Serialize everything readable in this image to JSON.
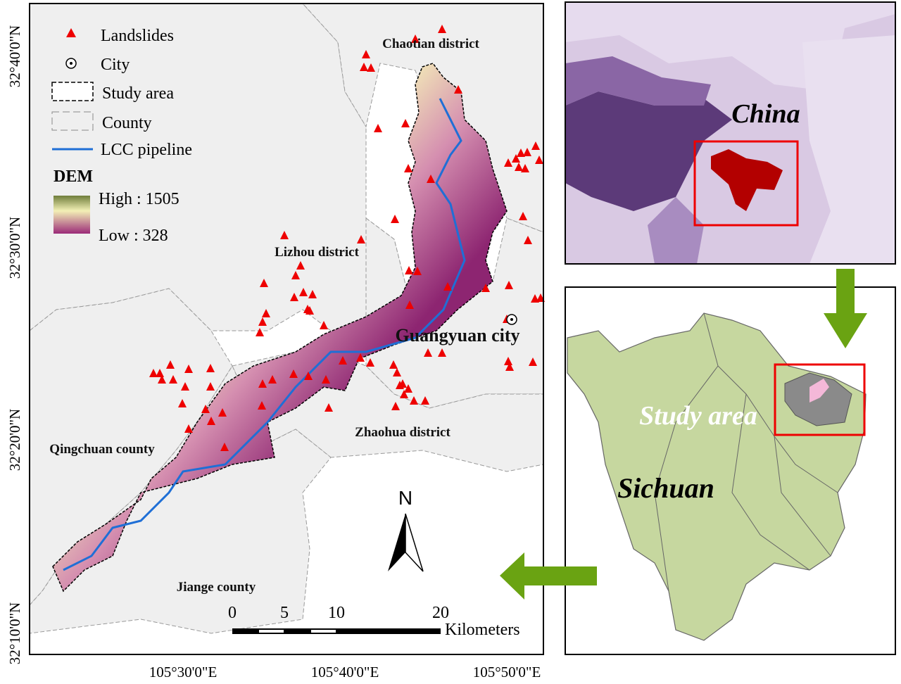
{
  "legend": {
    "landslides": "Landslides",
    "city": "City",
    "study_area": "Study area",
    "county": "County",
    "pipeline": "LCC pipeline",
    "dem_title": "DEM",
    "dem_high": "High : 1505",
    "dem_low": "Low : 328"
  },
  "places": [
    "Chaotian district",
    "Lizhou district",
    "Guangyuan city",
    "Zhaohua district",
    "Qingchuan county",
    "Jiange county"
  ],
  "lat_labels": [
    "32°40'0\"N",
    "32°30'0\"N",
    "32°20'0\"N",
    "32°10'0\"N"
  ],
  "lon_labels": [
    "105°30'0\"E",
    "105°40'0\"E",
    "105°50'0\"E"
  ],
  "scale_bar": {
    "ticks": [
      "0",
      "5",
      "10",
      "20"
    ],
    "unit": "Kilometers"
  },
  "north": "N",
  "inset_china": {
    "label": "China"
  },
  "inset_sichuan": {
    "study_area": "Study area",
    "province": "Sichuan"
  }
}
